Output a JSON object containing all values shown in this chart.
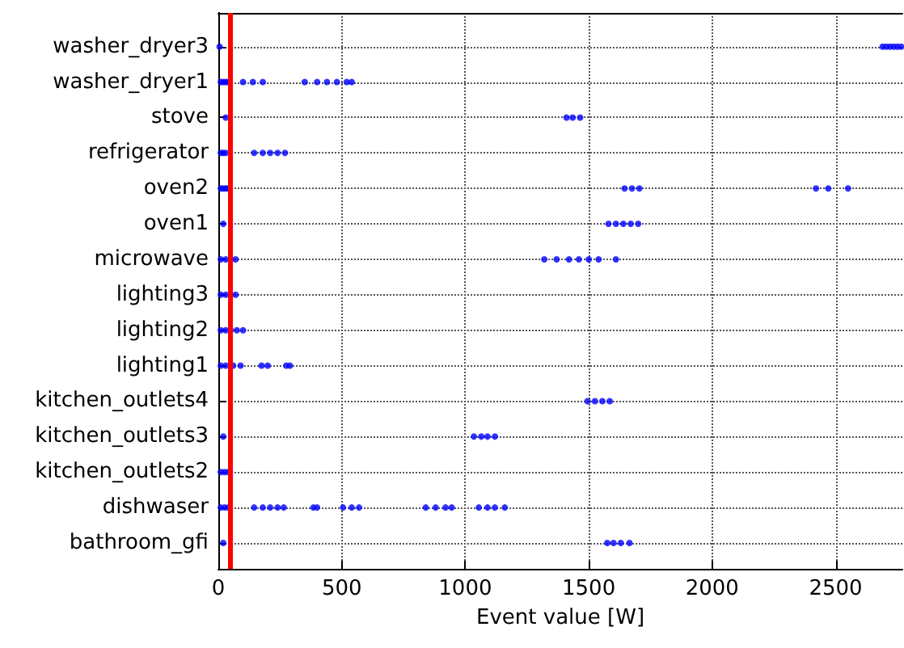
{
  "chart_data": {
    "type": "scatter",
    "orientation": "horizontal",
    "xlabel": "Event value [W]",
    "categories": [
      "washer_dryer3",
      "washer_dryer1",
      "stove",
      "refrigerator",
      "oven2",
      "oven1",
      "microwave",
      "lighting3",
      "lighting2",
      "lighting1",
      "kitchen_outlets4",
      "kitchen_outlets3",
      "kitchen_outlets2",
      "dishwaser",
      "bathroom_gfi"
    ],
    "xlim": [
      0,
      2770
    ],
    "xticks": [
      0,
      500,
      1000,
      1500,
      2000,
      2500
    ],
    "grid": true,
    "marker": "circle",
    "ref_lines": [
      {
        "axis": "x",
        "value": 50,
        "color": "#ff0000"
      }
    ],
    "series": [
      {
        "color": "#0000ff",
        "x": [
          "washer_dryer3",
          "washer_dryer3",
          "washer_dryer3",
          "washer_dryer3",
          "washer_dryer3",
          "washer_dryer3",
          "washer_dryer3",
          "washer_dryer1",
          "washer_dryer1",
          "washer_dryer1",
          "washer_dryer1",
          "washer_dryer1",
          "washer_dryer1",
          "washer_dryer1",
          "washer_dryer1",
          "washer_dryer1",
          "washer_dryer1",
          "washer_dryer1",
          "washer_dryer1",
          "washer_dryer1",
          "stove",
          "stove",
          "stove",
          "stove",
          "refrigerator",
          "refrigerator",
          "refrigerator",
          "refrigerator",
          "refrigerator",
          "refrigerator",
          "refrigerator",
          "refrigerator",
          "oven2",
          "oven2",
          "oven2",
          "oven2",
          "oven2",
          "oven2",
          "oven2",
          "oven2",
          "oven2",
          "oven2",
          "oven1",
          "oven1",
          "oven1",
          "oven1",
          "oven1",
          "oven1",
          "microwave",
          "microwave",
          "microwave",
          "microwave",
          "microwave",
          "microwave",
          "microwave",
          "microwave",
          "microwave",
          "microwave",
          "microwave",
          "lighting3",
          "lighting3",
          "lighting3",
          "lighting3",
          "lighting2",
          "lighting2",
          "lighting2",
          "lighting2",
          "lighting2",
          "lighting1",
          "lighting1",
          "lighting1",
          "lighting1",
          "lighting1",
          "lighting1",
          "lighting1",
          "lighting1",
          "kitchen_outlets4",
          "kitchen_outlets4",
          "kitchen_outlets4",
          "kitchen_outlets4",
          "kitchen_outlets3",
          "kitchen_outlets3",
          "kitchen_outlets3",
          "kitchen_outlets3",
          "kitchen_outlets3",
          "kitchen_outlets2",
          "kitchen_outlets2",
          "kitchen_outlets2",
          "dishwaser",
          "dishwaser",
          "dishwaser",
          "dishwaser",
          "dishwaser",
          "dishwaser",
          "dishwaser",
          "dishwaser",
          "dishwaser",
          "dishwaser",
          "dishwaser",
          "dishwaser",
          "dishwaser",
          "dishwaser",
          "dishwaser",
          "dishwaser",
          "dishwaser",
          "dishwaser",
          "dishwaser",
          "dishwaser",
          "dishwaser",
          "bathroom_gfi",
          "bathroom_gfi",
          "bathroom_gfi",
          "bathroom_gfi",
          "bathroom_gfi"
        ],
        "values": [
          5,
          2690,
          2705,
          2720,
          2735,
          2750,
          2765,
          10,
          20,
          30,
          40,
          100,
          140,
          180,
          350,
          400,
          440,
          480,
          520,
          540,
          30,
          1410,
          1435,
          1465,
          10,
          20,
          30,
          145,
          180,
          210,
          240,
          270,
          10,
          20,
          30,
          40,
          1645,
          1675,
          1705,
          2420,
          2470,
          2550,
          20,
          1580,
          1610,
          1640,
          1670,
          1700,
          10,
          30,
          50,
          70,
          1320,
          1370,
          1420,
          1460,
          1500,
          1540,
          1610,
          10,
          30,
          50,
          70,
          10,
          30,
          50,
          75,
          100,
          10,
          30,
          60,
          90,
          175,
          200,
          275,
          290,
          1495,
          1525,
          1555,
          1585,
          20,
          1035,
          1065,
          1090,
          1120,
          10,
          25,
          40,
          10,
          25,
          40,
          145,
          180,
          210,
          240,
          265,
          385,
          400,
          505,
          540,
          570,
          840,
          880,
          920,
          945,
          1055,
          1090,
          1120,
          1160,
          20,
          1575,
          1600,
          1630,
          1665
        ]
      }
    ]
  }
}
